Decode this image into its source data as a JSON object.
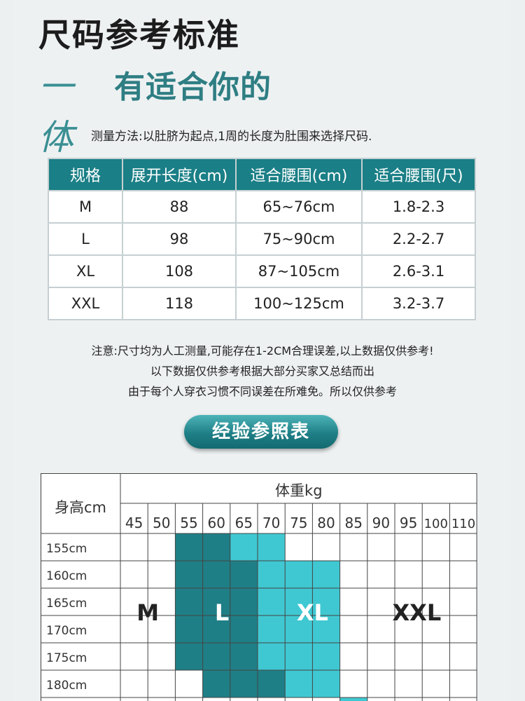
{
  "title": "尺码参考标准",
  "subtitle": {
    "script": "一体",
    "text": "有适合你的"
  },
  "method": "测量方法:以肚脐为起点,1周的长度为肚围来选择尺码.",
  "size_table": {
    "headers": [
      "规格",
      "展开长度(cm)",
      "适合腰围(cm)",
      "适合腰围(尺)"
    ],
    "rows": [
      [
        "M",
        "88",
        "65~76cm",
        "1.8-2.3"
      ],
      [
        "L",
        "98",
        "75~90cm",
        "2.2-2.7"
      ],
      [
        "XL",
        "108",
        "87~105cm",
        "2.6-3.1"
      ],
      [
        "XXL",
        "118",
        "100~125cm",
        "3.2-3.7"
      ]
    ]
  },
  "notes": [
    "注意:尺寸均为人工测量,可能存在1-2CM合理误差,以上数据仅供参考!",
    "以下数据仅供参考根据大部分买家又总结而出",
    "由于每个人穿衣习惯不同误差在所难免。所以仅供参考"
  ],
  "experience_label": "经验参照表",
  "weight_chart": {
    "height_header": "身高cm",
    "weight_header": "体重kg",
    "weights": [
      "45",
      "50",
      "55",
      "60",
      "65",
      "70",
      "75",
      "80",
      "85",
      "90",
      "95",
      "100",
      "110"
    ],
    "heights": [
      "155cm",
      "160cm",
      "165cm",
      "170cm",
      "175cm",
      "180cm"
    ],
    "size_labels": [
      "M",
      "L",
      "XL",
      "XXL"
    ],
    "colors": {
      "dark": "#1f7f86",
      "medium": "#2fa7ad",
      "light": "#3fc8d2"
    }
  }
}
